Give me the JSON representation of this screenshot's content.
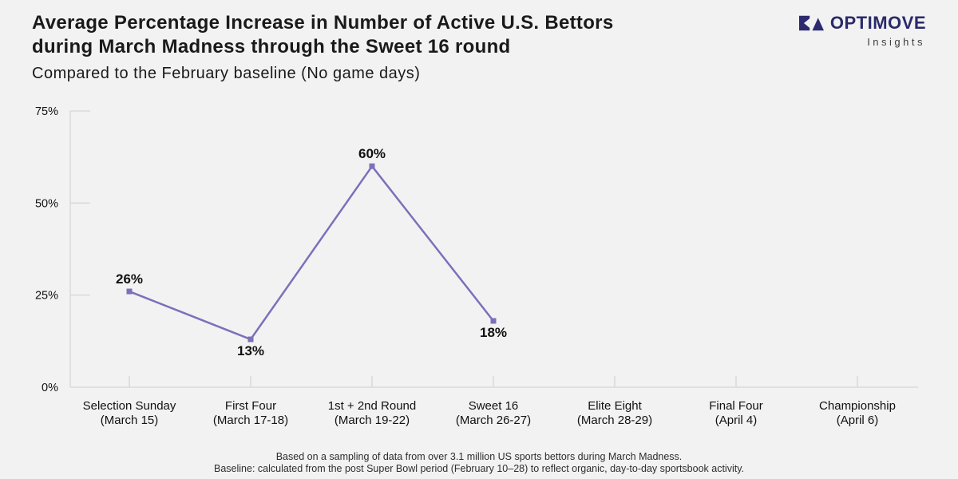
{
  "header": {
    "title_line1": "Average Percentage Increase in Number of Active U.S. Bettors",
    "title_line2": "during March Madness through the Sweet 16 round",
    "subtitle": "Compared to the February baseline (No game days)",
    "logo": {
      "brand": "OPTIMOVE",
      "tagline": "Insights",
      "mark_color": "#2D2A6E",
      "brand_color": "#2B2A6A",
      "tagline_color": "#3D3D3D"
    }
  },
  "chart_data": {
    "type": "line",
    "title": "Average Percentage Increase in Number of Active U.S. Bettors during March Madness through the Sweet 16 round",
    "subtitle": "Compared to the February baseline (No game days)",
    "categories": [
      {
        "name": "Selection Sunday",
        "date": "(March 15)"
      },
      {
        "name": "First Four",
        "date": "(March 17-18)"
      },
      {
        "name": "1st + 2nd Round",
        "date": "(March 19-22)"
      },
      {
        "name": "Sweet 16",
        "date": "(March 26-27)"
      },
      {
        "name": "Elite Eight",
        "date": "(March 28-29)"
      },
      {
        "name": "Final Four",
        "date": "(April 4)"
      },
      {
        "name": "Championship",
        "date": "(April 6)"
      }
    ],
    "series": [
      {
        "values": [
          26,
          13,
          60,
          18,
          null,
          null,
          null
        ],
        "value_labels": [
          "26%",
          "13%",
          "60%",
          "18%",
          null,
          null,
          null
        ],
        "label_positions": [
          "top",
          "bottom",
          "top",
          "bottom",
          null,
          null,
          null
        ],
        "color": "#7C70BA",
        "marker": "square"
      }
    ],
    "y_ticks": [
      0,
      25,
      50,
      75
    ],
    "y_tick_suffix": "%",
    "ylim": [
      0,
      75
    ],
    "xlabel": "",
    "ylabel": "",
    "legend": "none",
    "grid": "tick-stubs-only",
    "axis_color": "#D9D9D9"
  },
  "footer": {
    "line1": "Based on a sampling of data from over 3.1 million US sports bettors during March Madness.",
    "line2": "Baseline: calculated from the post Super Bowl period (February 10–28) to reflect organic, day-to-day sportsbook activity."
  },
  "colors": {
    "background": "#F2F2F2",
    "title_text": "#1A1A1A",
    "label_text": "#111111"
  }
}
